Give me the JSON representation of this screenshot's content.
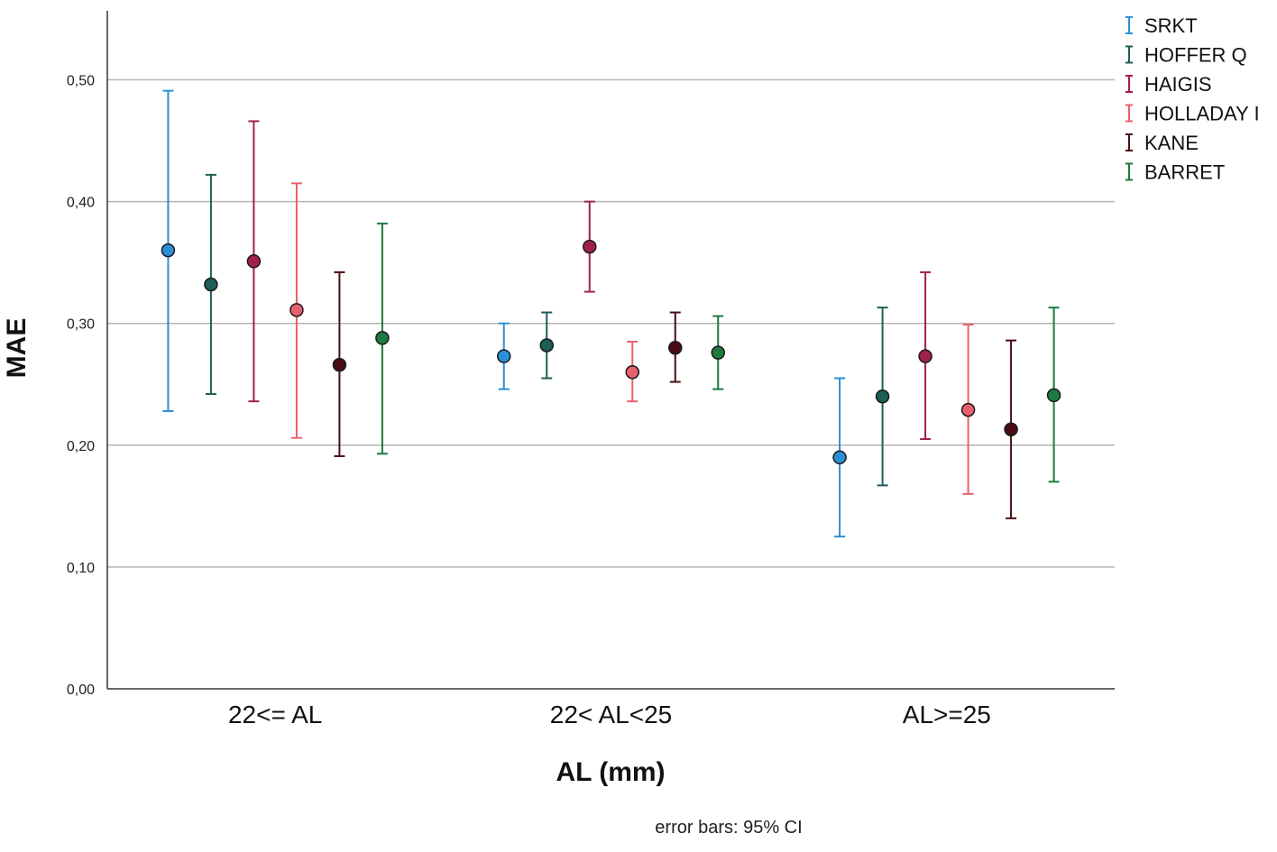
{
  "chart_data": {
    "type": "scatter",
    "subtype": "error-bar-dot-plot",
    "xlabel": "AL (mm)",
    "ylabel": "MAE",
    "ylim": [
      0,
      0.55
    ],
    "yticks": [
      "0,00",
      "0,10",
      "0,20",
      "0,30",
      "0,40",
      "0,50"
    ],
    "ytick_values": [
      0,
      0.1,
      0.2,
      0.3,
      0.4,
      0.5
    ],
    "grid": "horizontal",
    "legend_position": "top-right",
    "note": "error bars: 95% CI",
    "categories": [
      "22<= AL",
      "22< AL<25",
      "AL>=25"
    ],
    "series": [
      {
        "name": "SRKT",
        "color": "#2b8fd6",
        "mean": [
          0.36,
          0.273,
          0.19
        ],
        "lower": [
          0.228,
          0.246,
          0.125
        ],
        "upper": [
          0.491,
          0.3,
          0.255
        ]
      },
      {
        "name": "HOFFER Q",
        "color": "#1c5e58",
        "mean": [
          0.332,
          0.282,
          0.24
        ],
        "lower": [
          0.242,
          0.255,
          0.167
        ],
        "upper": [
          0.422,
          0.309,
          0.313
        ]
      },
      {
        "name": "HAIGIS",
        "color": "#a0204d",
        "mean": [
          0.351,
          0.363,
          0.273
        ],
        "lower": [
          0.236,
          0.326,
          0.205
        ],
        "upper": [
          0.466,
          0.4,
          0.342
        ]
      },
      {
        "name": "HOLLADAY I",
        "color": "#e8606e",
        "mean": [
          0.311,
          0.26,
          0.229
        ],
        "lower": [
          0.206,
          0.236,
          0.16
        ],
        "upper": [
          0.415,
          0.285,
          0.299
        ]
      },
      {
        "name": "KANE",
        "color": "#4a0d14",
        "mean": [
          0.266,
          0.28,
          0.213
        ],
        "lower": [
          0.191,
          0.252,
          0.14
        ],
        "upper": [
          0.342,
          0.309,
          0.286
        ]
      },
      {
        "name": "BARRET",
        "color": "#1d7a3e",
        "mean": [
          0.288,
          0.276,
          0.241
        ],
        "lower": [
          0.193,
          0.246,
          0.17
        ],
        "upper": [
          0.382,
          0.306,
          0.313
        ]
      }
    ]
  }
}
